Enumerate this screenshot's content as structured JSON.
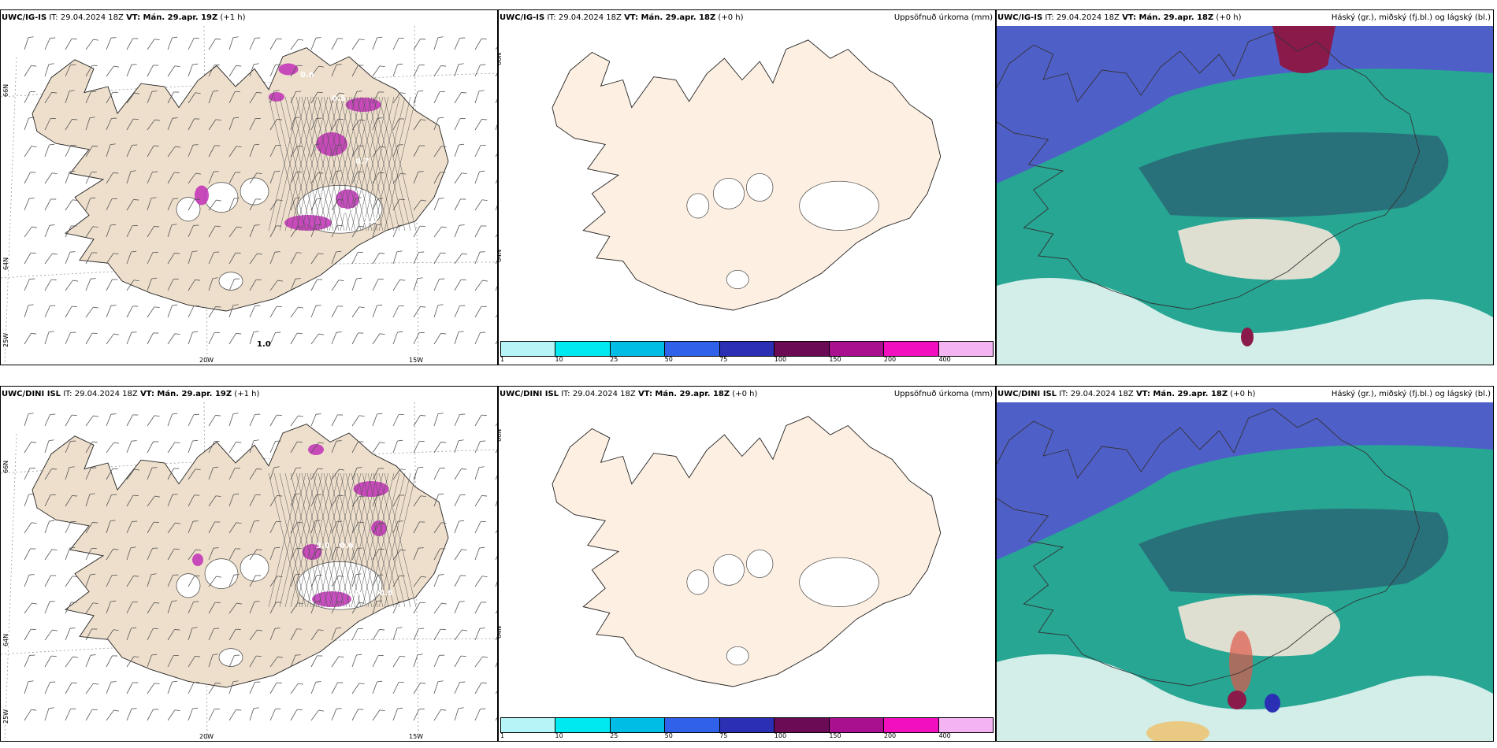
{
  "rows": [
    {
      "wind": {
        "model": "UWC/IG-IS",
        "it": "IT: 29.04.2024 18Z",
        "vt": "VT: Mán. 29.apr. 19Z",
        "step": "(+1 h)"
      },
      "precip": {
        "model": "UWC/IG-IS",
        "it": "IT: 29.04.2024 18Z",
        "vt": "VT: Mán. 29.apr. 18Z",
        "step": "(+0 h)",
        "title": "Uppsöfnuð úrkoma (mm)"
      },
      "cloud": {
        "model": "UWC/IG-IS",
        "it": "IT: 29.04.2024 18Z",
        "vt": "VT: Mán. 29.apr. 18Z",
        "step": "(+0 h)",
        "title": "Háský (gr.), miðský (fj.bl.) og lágský (bl.)"
      },
      "labels": [
        "0.6",
        "0.5",
        "0.7",
        "1.0",
        "0.5",
        "1.0"
      ]
    },
    {
      "wind": {
        "model": "UWC/DINI ISL",
        "it": "IT: 29.04.2024 18Z",
        "vt": "VT: Mán. 29.apr. 19Z",
        "step": "(+1 h)"
      },
      "precip": {
        "model": "UWC/DINI ISL",
        "it": "IT: 29.04.2024 18Z",
        "vt": "VT: Mán. 29.apr. 18Z",
        "step": "(+0 h)",
        "title": "Uppsöfnuð úrkoma (mm)"
      },
      "cloud": {
        "model": "UWC/DINI ISL",
        "it": "IT: 29.04.2024 18Z",
        "vt": "VT: Mán. 29.apr. 18Z",
        "step": "(+0 h)",
        "title": "Háský (gr.), miðský (fj.bl.) og lágský (bl.)"
      },
      "labels": [
        "3.0",
        "0.6",
        "1.5",
        "0.6"
      ]
    }
  ],
  "axes": {
    "lat_top": "66N",
    "lat_bottom": "64N",
    "lon_corner": "25W",
    "lon_a": "20W",
    "lon_b": "15W"
  },
  "colorbar": {
    "ticks": [
      "1",
      "10",
      "25",
      "50",
      "75",
      "100",
      "150",
      "200",
      "400"
    ],
    "colors": [
      "#b5f5f7",
      "#00e8f0",
      "#00bde6",
      "#2f62e8",
      "#2a2fb4",
      "#6b0a55",
      "#a9108f",
      "#f20fbe",
      "#f4b4f4"
    ]
  },
  "colors": {
    "land_wind": "#eedfcc",
    "land_precip": "#fdefe1",
    "sea": "#ffffff",
    "cloud_high": "#4f5fc8",
    "cloud_mid": "#1fb38a",
    "cloud_low": "#2a6b78"
  }
}
